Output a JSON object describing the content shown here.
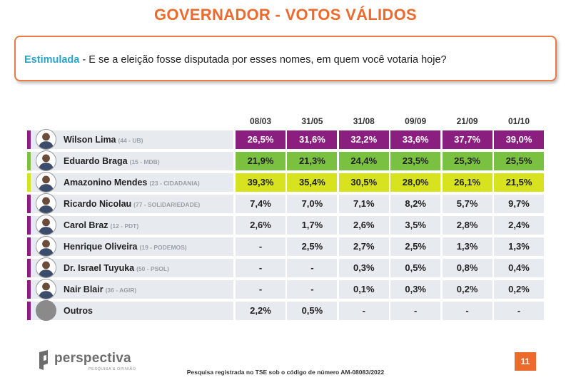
{
  "title": "GOVERNADOR - VOTOS VÁLIDOS",
  "question": {
    "label": "Estimulada",
    "text": " - E se a eleição fosse disputada por esses nomes, em quem você votaria hoje?"
  },
  "chart_data": {
    "type": "table",
    "columns": [
      "08/03",
      "31/05",
      "31/08",
      "09/09",
      "21/09",
      "01/10"
    ],
    "rows": [
      {
        "name": "Wilson Lima",
        "party": "(44 - UB)",
        "highlight": "#8b1f7f",
        "text_color": "#ffffff",
        "avatar": "person",
        "values": [
          "26,5%",
          "31,6%",
          "32,2%",
          "33,6%",
          "37,7%",
          "39,0%"
        ]
      },
      {
        "name": "Eduardo Braga",
        "party": "(15 - MDB)",
        "highlight": "#7ac142",
        "text_color": "#222222",
        "avatar": "person",
        "values": [
          "21,9%",
          "21,3%",
          "24,4%",
          "23,5%",
          "25,3%",
          "25,5%"
        ]
      },
      {
        "name": "Amazonino Mendes",
        "party": "(23 - CIDADANIA)",
        "highlight": "#d7e31e",
        "text_color": "#222222",
        "avatar": "person",
        "values": [
          "39,3%",
          "35,4%",
          "30,5%",
          "28,0%",
          "26,1%",
          "21,5%"
        ]
      },
      {
        "name": "Ricardo Nicolau",
        "party": "(77 - SOLIDARIEDADE)",
        "highlight": null,
        "text_color": "#222222",
        "avatar": "person",
        "values": [
          "7,4%",
          "7,0%",
          "7,1%",
          "8,2%",
          "5,7%",
          "9,7%"
        ]
      },
      {
        "name": "Carol Braz",
        "party": "(12 - PDT)",
        "highlight": null,
        "text_color": "#222222",
        "avatar": "person",
        "values": [
          "2,6%",
          "1,7%",
          "2,6%",
          "3,5%",
          "2,8%",
          "2,4%"
        ]
      },
      {
        "name": "Henrique Oliveira",
        "party": "(19 - PODEMOS)",
        "highlight": null,
        "text_color": "#222222",
        "avatar": "person",
        "values": [
          "-",
          "2,5%",
          "2,7%",
          "2,5%",
          "1,3%",
          "1,3%"
        ]
      },
      {
        "name": "Dr. Israel Tuyuka",
        "party": "(50 - PSOL)",
        "highlight": null,
        "text_color": "#222222",
        "avatar": "person",
        "values": [
          "-",
          "-",
          "0,3%",
          "0,5%",
          "0,8%",
          "0,4%"
        ]
      },
      {
        "name": "Nair Blair",
        "party": "(36 - AGIR)",
        "highlight": null,
        "text_color": "#222222",
        "avatar": "person",
        "values": [
          "-",
          "-",
          "0,1%",
          "0,3%",
          "0,2%",
          "0,2%"
        ]
      },
      {
        "name": "Outros",
        "party": "",
        "highlight": null,
        "text_color": "#222222",
        "avatar": "plain",
        "values": [
          "2,2%",
          "0,5%",
          "-",
          "-",
          "-",
          "-"
        ]
      }
    ]
  },
  "colors": {
    "accent": "#ec6a2c",
    "question_label": "#2aa3c9",
    "row_background": "#e7ebf0",
    "marker_default": "#8b1f7f"
  },
  "icons": {
    "logo": "perspectiva-logo-icon",
    "avatar": "candidate-avatar-icon"
  },
  "logo": {
    "name": "perspectiva",
    "tagline": "PESQUISA & OPINIÃO"
  },
  "footer": {
    "note": "Pesquisa registrada no TSE sob o código de número AM-08083/2022"
  },
  "page_number": "11"
}
